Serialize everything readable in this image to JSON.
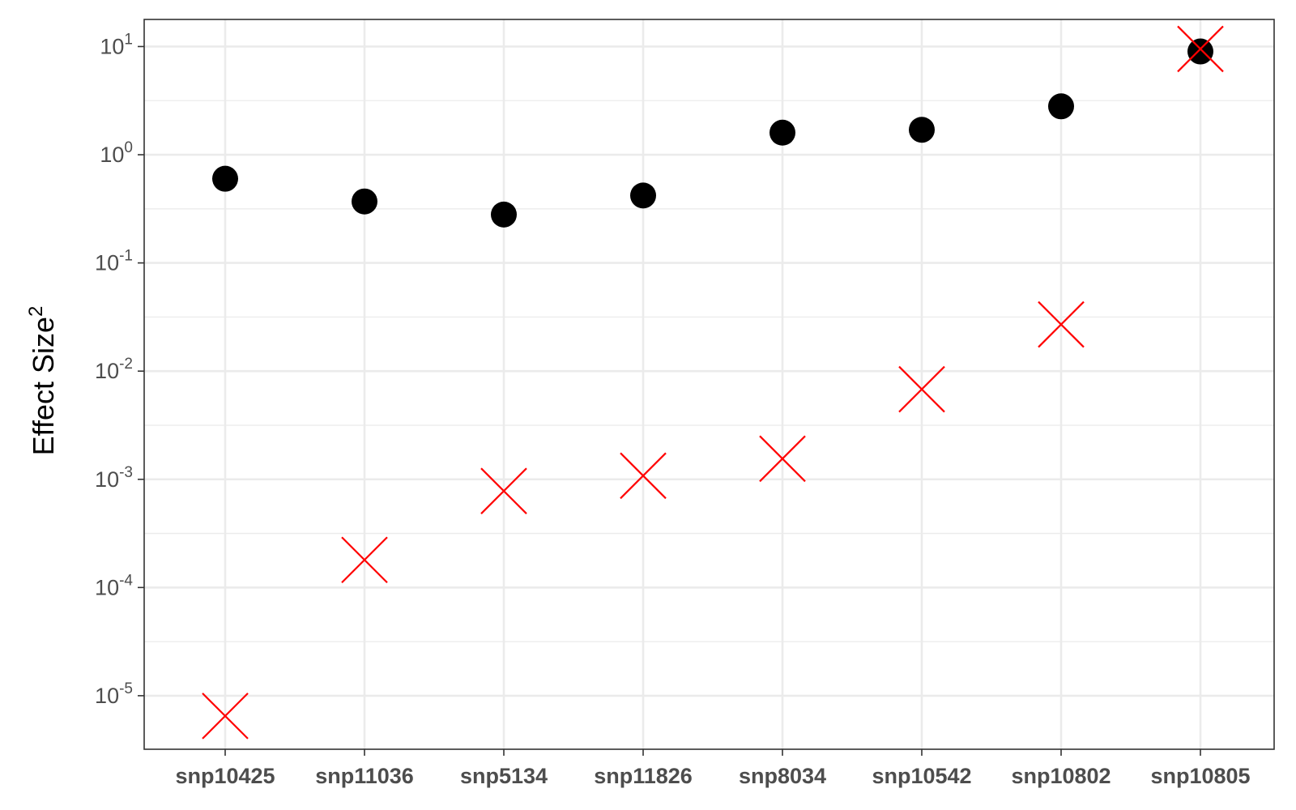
{
  "chart_data": {
    "type": "scatter",
    "ylabel": "Effect Size",
    "ylabel_superscript": "2",
    "yscale": "log10",
    "ylim": [
      3.2e-06,
      17.8
    ],
    "y_ticks": [
      {
        "value": 1e-05,
        "base": "10",
        "exp": "-5"
      },
      {
        "value": 0.0001,
        "base": "10",
        "exp": "-4"
      },
      {
        "value": 0.001,
        "base": "10",
        "exp": "-3"
      },
      {
        "value": 0.01,
        "base": "10",
        "exp": "-2"
      },
      {
        "value": 0.1,
        "base": "10",
        "exp": "-1"
      },
      {
        "value": 1,
        "base": "10",
        "exp": "0"
      },
      {
        "value": 10,
        "base": "10",
        "exp": "1"
      }
    ],
    "categories": [
      "snp10425",
      "snp11036",
      "snp5134",
      "snp11826",
      "snp8034",
      "snp10542",
      "snp10802",
      "snp10805"
    ],
    "grid": true,
    "series": [
      {
        "marker": "circle",
        "color": "#000000",
        "values": [
          0.6,
          0.37,
          0.28,
          0.42,
          1.6,
          1.7,
          2.8,
          9.0
        ]
      },
      {
        "marker": "x",
        "color": "#ff0000",
        "values": [
          6.5e-06,
          0.00018,
          0.00078,
          0.00108,
          0.00155,
          0.0068,
          0.027,
          9.5
        ]
      }
    ]
  }
}
